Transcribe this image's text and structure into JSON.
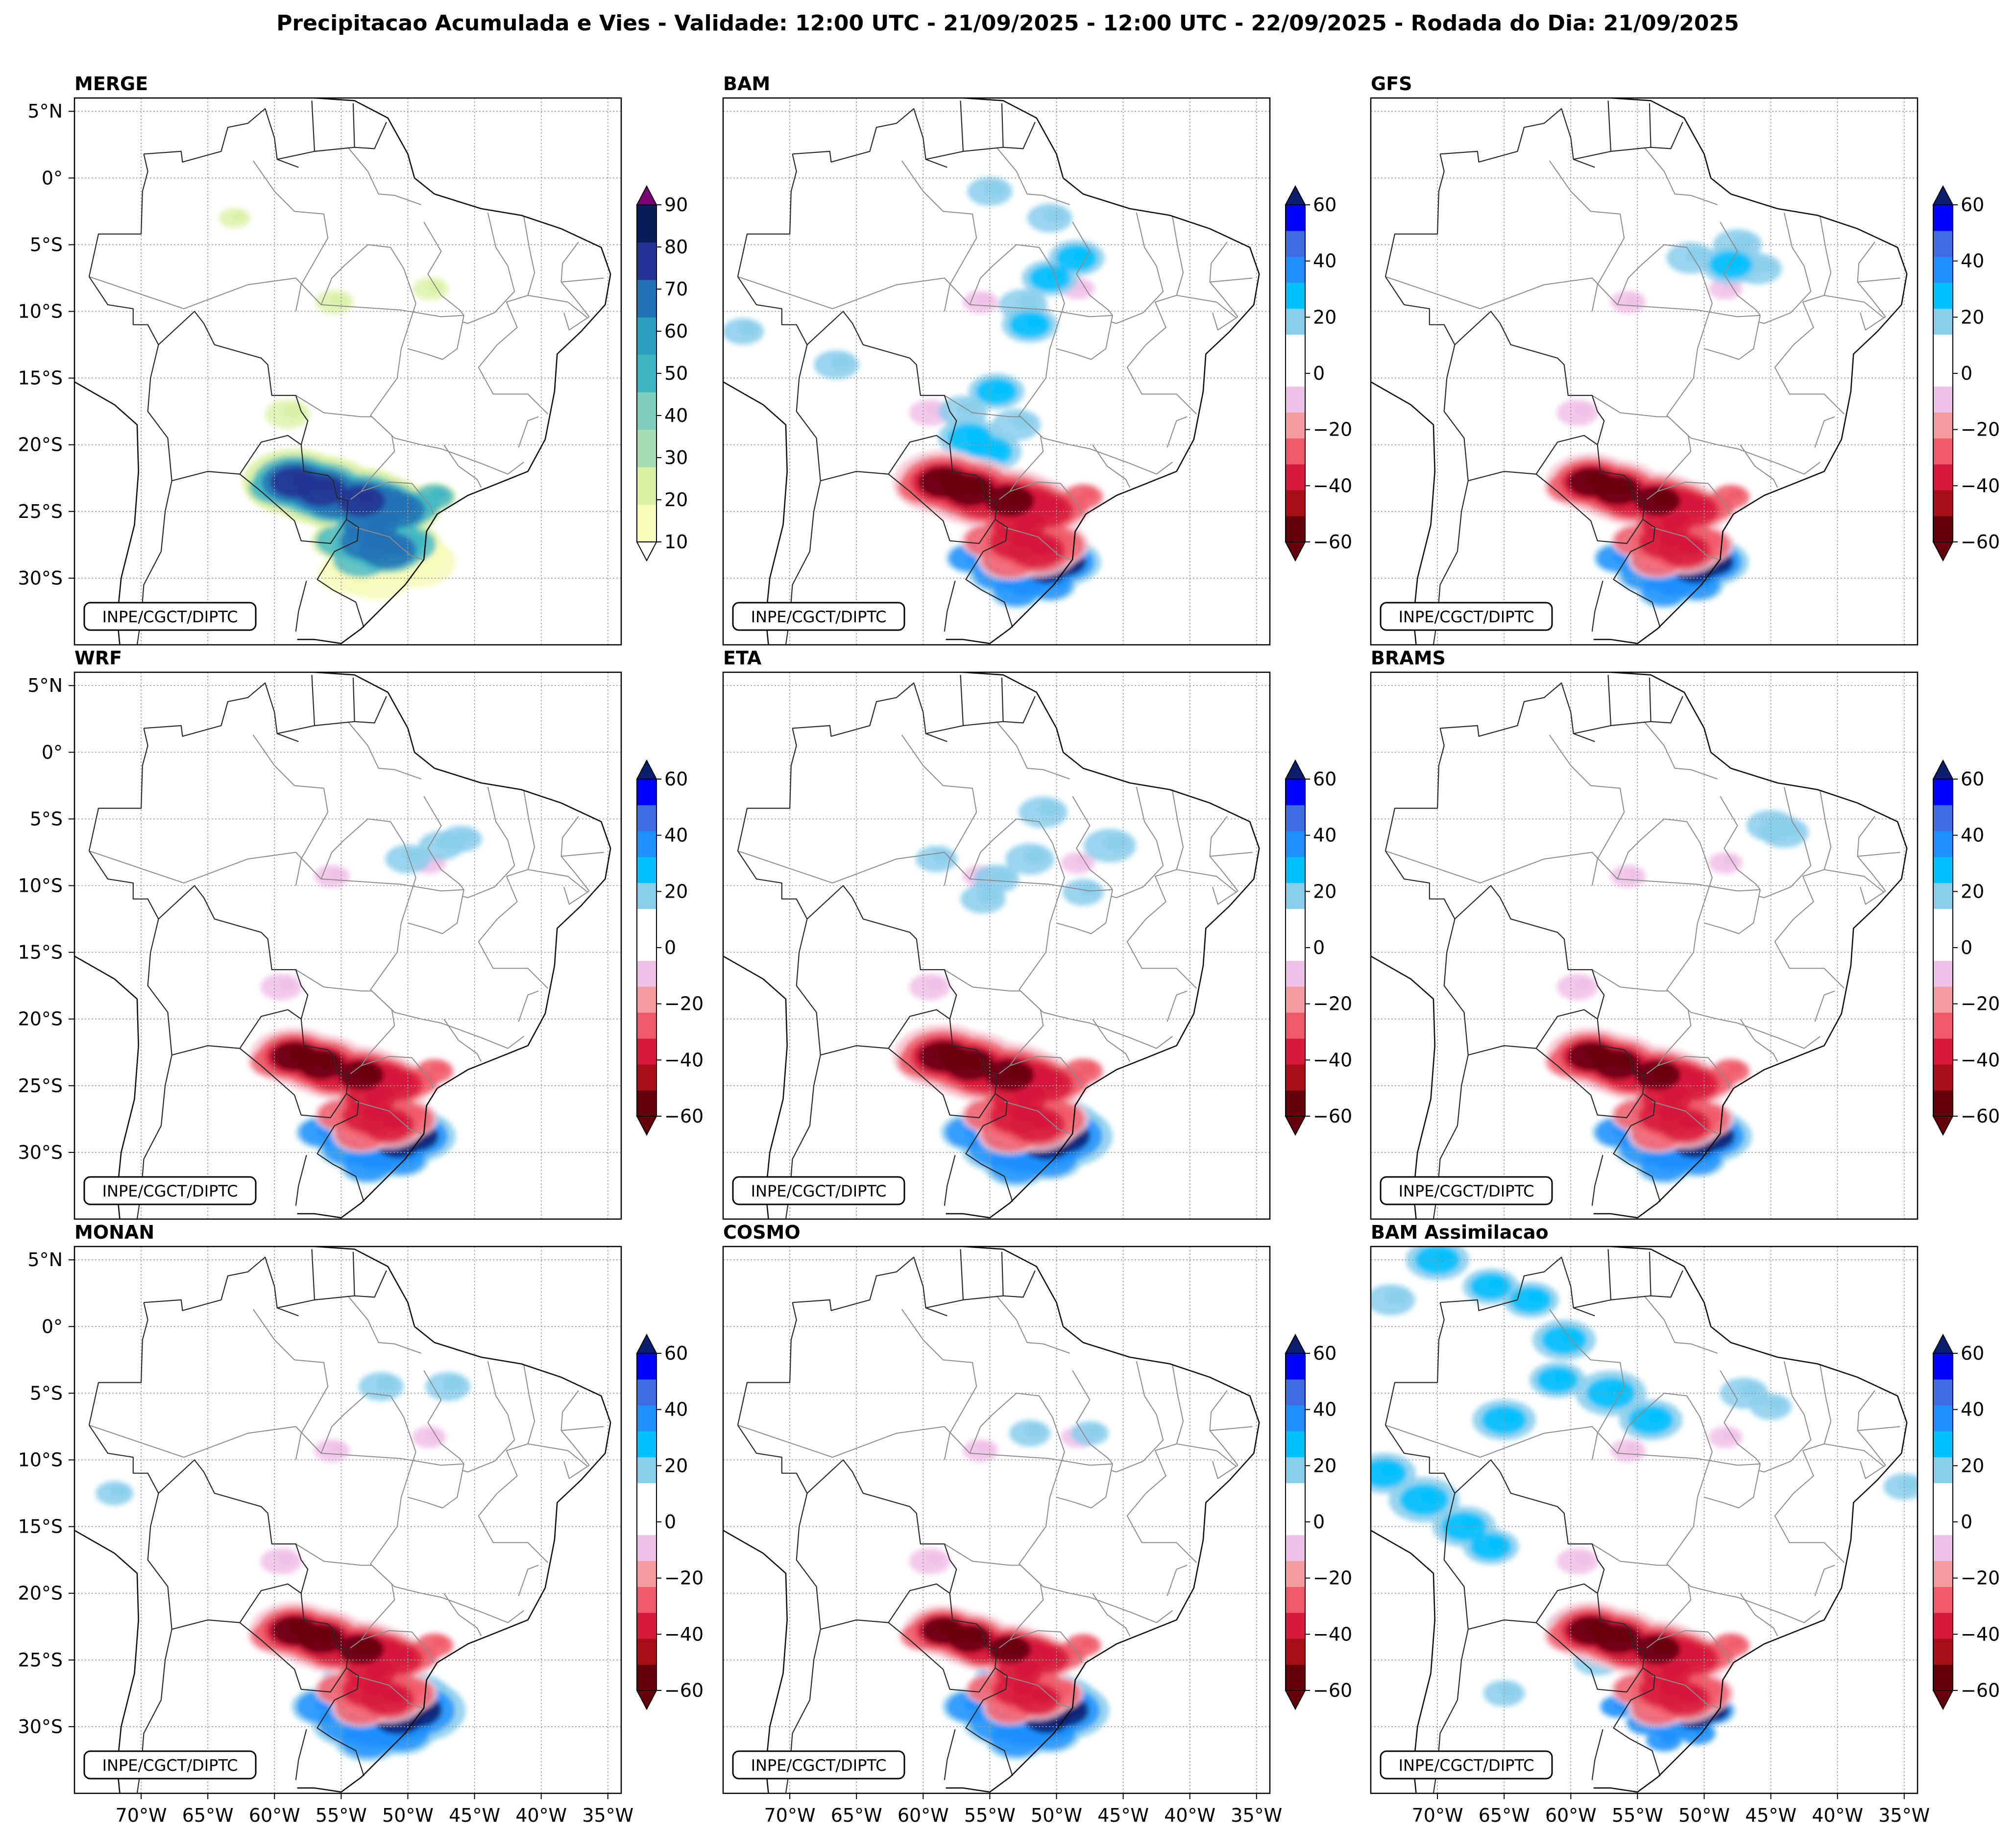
{
  "title": "Precipitacao Acumulada e Vies - Validade: 12:00 UTC - 21/09/2025 - 12:00 UTC - 22/09/2025 - Rodada do Dia: 21/09/2025",
  "credit": "INPE/CGCT/DIPTC",
  "lat_labels": [
    "5°N",
    "0°",
    "5°S",
    "10°S",
    "15°S",
    "20°S",
    "25°S",
    "30°S"
  ],
  "lon_labels": [
    "70°W",
    "65°W",
    "60°W",
    "55°W",
    "50°W",
    "45°W",
    "40°W",
    "35°W"
  ],
  "map_extent": {
    "lon": [
      -75,
      -34
    ],
    "lat": [
      -35,
      6
    ]
  },
  "colors": {
    "merge_scale": [
      "#f7fcb9",
      "#d9f0a3",
      "#a8dcb4",
      "#7fcdbb",
      "#41b6c4",
      "#2c9fc0",
      "#2171b5",
      "#253494",
      "#081d58"
    ],
    "merge_over": "#7a0177",
    "bias_neg": [
      "#67000d",
      "#a50f15",
      "#d7193d",
      "#ef5a6a",
      "#f49b9f",
      "#f7c6d0",
      "#eec1e6"
    ],
    "bias_pos": [
      "#87ceeb",
      "#00bfff",
      "#1e90ff",
      "#3d6de0",
      "#0000ff",
      "#0a1f6e"
    ]
  },
  "panels": [
    {
      "name": "MERGE",
      "type": "precip",
      "cbar_ticks": [
        "90",
        "80",
        "70",
        "60",
        "50",
        "40",
        "30",
        "20",
        "10"
      ]
    },
    {
      "name": "BAM",
      "type": "bias",
      "cbar_ticks": [
        "60",
        "40",
        "20",
        "0",
        "−20",
        "−40",
        "−60"
      ]
    },
    {
      "name": "GFS",
      "type": "bias",
      "cbar_ticks": [
        "60",
        "40",
        "20",
        "0",
        "−20",
        "−40",
        "−60"
      ]
    },
    {
      "name": "WRF",
      "type": "bias",
      "cbar_ticks": [
        "60",
        "40",
        "20",
        "0",
        "−20",
        "−40",
        "−60"
      ]
    },
    {
      "name": "ETA",
      "type": "bias",
      "cbar_ticks": [
        "60",
        "40",
        "20",
        "0",
        "−20",
        "−40",
        "−60"
      ]
    },
    {
      "name": "BRAMS",
      "type": "bias",
      "cbar_ticks": [
        "60",
        "40",
        "20",
        "0",
        "−20",
        "−40",
        "−60"
      ]
    },
    {
      "name": "MONAN",
      "type": "bias",
      "cbar_ticks": [
        "60",
        "40",
        "20",
        "0",
        "−20",
        "−40",
        "−60"
      ]
    },
    {
      "name": "COSMO",
      "type": "bias",
      "cbar_ticks": [
        "60",
        "40",
        "20",
        "0",
        "−20",
        "−40",
        "−60"
      ]
    },
    {
      "name": "BAM Assimilacao",
      "type": "bias",
      "cbar_ticks": [
        "60",
        "40",
        "20",
        "0",
        "−20",
        "−40",
        "−60"
      ]
    }
  ]
}
